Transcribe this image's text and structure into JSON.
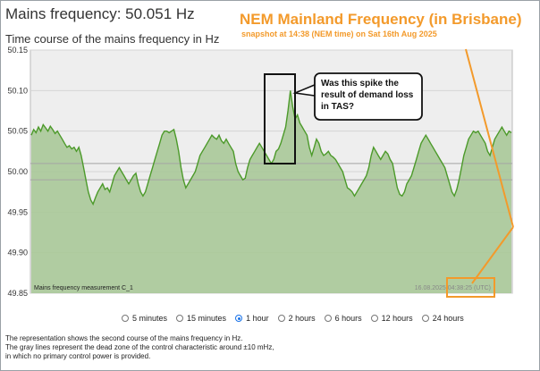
{
  "page": {
    "title": "Mains frequency: 50.051 Hz",
    "subtitle": "Time course of the mains frequency in Hz"
  },
  "annotation": {
    "title": "NEM Mainland Frequency (in Brisbane)",
    "subtitle": "snapshot at 14:38 (NEM time) on Sat 16th Aug 2025",
    "callout_line1": "Was this spike the",
    "callout_line2": "result of demand loss",
    "callout_line3": "in TAS?"
  },
  "colors": {
    "accent": "#f39a2b",
    "line": "#4c9a2a",
    "fill": "#a8c898",
    "plot_bg": "#eeeeee"
  },
  "chart_data": {
    "type": "area",
    "inner_label": "Mains frequency measurement C_1",
    "timestamp_label": "16.08.2025 04:38:25 (UTC)",
    "ylim": [
      49.85,
      50.15
    ],
    "yticks": [
      "50.15",
      "50.10",
      "50.05",
      "50.00",
      "49.95",
      "49.90",
      "49.85"
    ],
    "dead_zone": [
      49.99,
      50.01
    ],
    "grid": true,
    "series": [
      {
        "values": [
          50.045,
          50.052,
          50.048,
          50.055,
          50.05,
          50.058,
          50.054,
          50.05,
          50.056,
          50.052,
          50.047,
          50.05,
          50.045,
          50.04,
          50.035,
          50.03,
          50.032,
          50.028,
          50.03,
          50.025,
          50.03,
          50.02,
          50.005,
          49.99,
          49.975,
          49.965,
          49.96,
          49.968,
          49.975,
          49.98,
          49.985,
          49.978,
          49.98,
          49.975,
          49.985,
          49.995,
          50.0,
          50.005,
          50.0,
          49.995,
          49.99,
          49.985,
          49.99,
          49.995,
          49.998,
          49.985,
          49.975,
          49.97,
          49.975,
          49.985,
          49.995,
          50.005,
          50.015,
          50.025,
          50.035,
          50.045,
          50.05,
          50.05,
          50.048,
          50.05,
          50.052,
          50.04,
          50.025,
          50.005,
          49.99,
          49.98,
          49.985,
          49.99,
          49.995,
          50.0,
          50.01,
          50.02,
          50.025,
          50.03,
          50.035,
          50.04,
          50.045,
          50.042,
          50.04,
          50.045,
          50.038,
          50.035,
          50.04,
          50.035,
          50.03,
          50.025,
          50.01,
          50.0,
          49.995,
          49.99,
          49.992,
          50.005,
          50.015,
          50.02,
          50.025,
          50.03,
          50.035,
          50.03,
          50.025,
          50.02,
          50.015,
          50.01,
          50.015,
          50.025,
          50.028,
          50.035,
          50.045,
          50.055,
          50.075,
          50.1,
          50.08,
          50.065,
          50.07,
          50.06,
          50.055,
          50.05,
          50.045,
          50.03,
          50.02,
          50.03,
          50.04,
          50.035,
          50.025,
          50.02,
          50.022,
          50.025,
          50.02,
          50.018,
          50.015,
          50.01,
          50.005,
          50.0,
          49.99,
          49.98,
          49.978,
          49.975,
          49.97,
          49.975,
          49.98,
          49.985,
          49.99,
          49.995,
          50.005,
          50.02,
          50.03,
          50.025,
          50.02,
          50.015,
          50.02,
          50.025,
          50.022,
          50.015,
          50.01,
          49.995,
          49.98,
          49.972,
          49.97,
          49.975,
          49.985,
          49.99,
          49.995,
          50.005,
          50.015,
          50.025,
          50.035,
          50.04,
          50.045,
          50.04,
          50.035,
          50.03,
          50.025,
          50.02,
          50.015,
          50.01,
          50.005,
          49.995,
          49.985,
          49.975,
          49.97,
          49.978,
          49.99,
          50.005,
          50.02,
          50.03,
          50.04,
          50.045,
          50.05,
          50.048,
          50.05,
          50.045,
          50.04,
          50.035,
          50.025,
          50.02,
          50.03,
          50.04,
          50.045,
          50.05,
          50.055,
          50.05,
          50.045,
          50.05,
          50.048
        ]
      }
    ]
  },
  "controls": {
    "options": [
      {
        "label": "5 minutes",
        "selected": false
      },
      {
        "label": "15 minutes",
        "selected": false
      },
      {
        "label": "1 hour",
        "selected": true
      },
      {
        "label": "2 hours",
        "selected": false
      },
      {
        "label": "6 hours",
        "selected": false
      },
      {
        "label": "12 hours",
        "selected": false
      },
      {
        "label": "24 hours",
        "selected": false
      }
    ]
  },
  "description": {
    "line1": "The representation shows the second course of the mains frequency in Hz.",
    "line2": "The gray lines represent the dead zone of the control characteristic around ±10 mHz,",
    "line3": "in which no primary control power is provided."
  }
}
